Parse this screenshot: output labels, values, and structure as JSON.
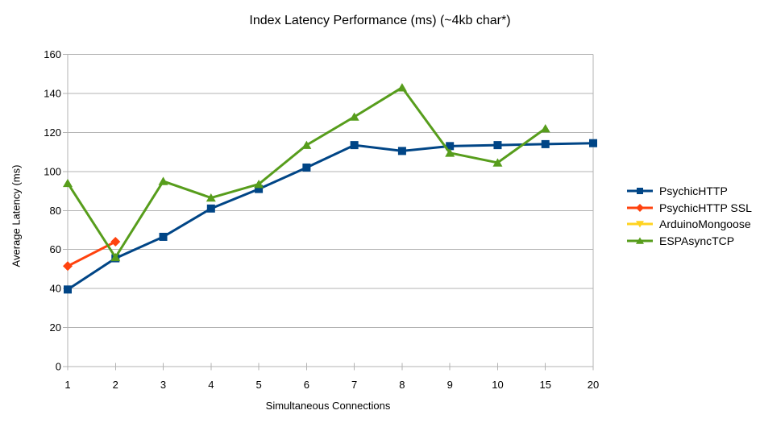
{
  "chart_data": {
    "type": "line",
    "title": "Index Latency Performance (ms) (~4kb char*)",
    "xlabel": "Simultaneous Connections",
    "ylabel": "Average Latency (ms)",
    "categories": [
      "1",
      "2",
      "3",
      "4",
      "5",
      "6",
      "7",
      "8",
      "9",
      "10",
      "15",
      "20"
    ],
    "ylim": [
      0,
      160
    ],
    "yticks": [
      0,
      20,
      40,
      60,
      80,
      100,
      120,
      140,
      160
    ],
    "grid": "horizontal",
    "legend_position": "right",
    "colors": {
      "axis": "#b3b3b3",
      "grid": "#b3b3b3",
      "text": "#000000",
      "background": "#ffffff"
    },
    "series": [
      {
        "name": "PsychicHTTP",
        "color": "#004586",
        "marker": "square",
        "values": [
          39.5,
          55.5,
          66.5,
          81,
          91,
          102,
          113.5,
          110.5,
          113,
          113.5,
          114,
          114.5
        ]
      },
      {
        "name": "PsychicHTTP SSL",
        "color": "#ff420e",
        "marker": "diamond",
        "values": [
          51.5,
          64,
          null,
          null,
          null,
          null,
          null,
          null,
          null,
          null,
          null,
          null
        ]
      },
      {
        "name": "ArduinoMongoose",
        "color": "#ffd320",
        "marker": "triangle-down",
        "values": [
          null,
          null,
          null,
          null,
          null,
          null,
          null,
          null,
          null,
          null,
          null,
          null
        ]
      },
      {
        "name": "ESPAsyncTCP",
        "color": "#579d1c",
        "marker": "triangle-up",
        "values": [
          94,
          56,
          95,
          86.5,
          93.5,
          113.5,
          128,
          143,
          109.5,
          104.5,
          122,
          null
        ]
      }
    ]
  }
}
